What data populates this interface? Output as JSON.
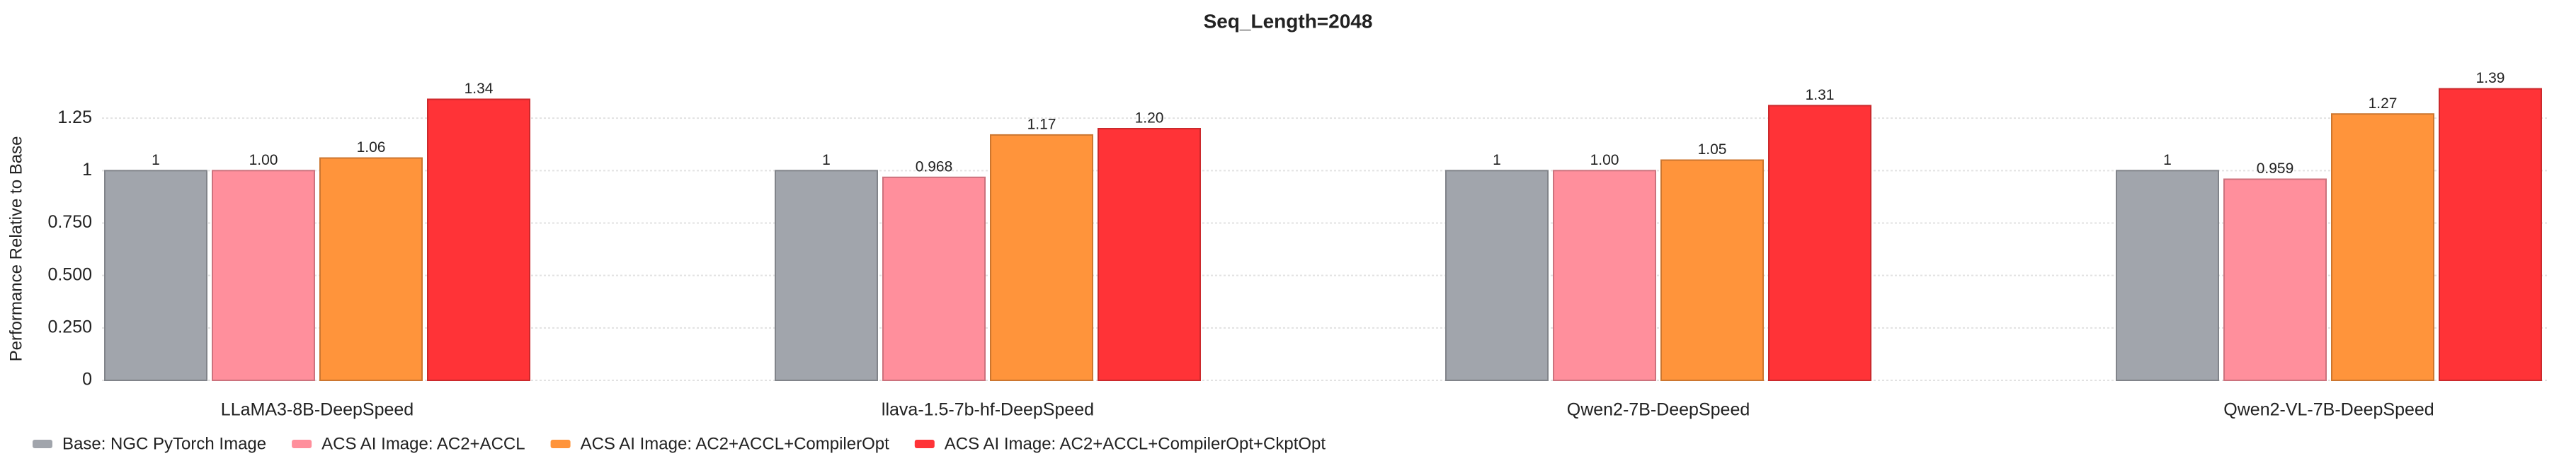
{
  "chart_data": {
    "type": "bar",
    "title": "Seq_Length=2048",
    "y_label": "Performance Relative to Base",
    "categories": [
      "LLaMA3-8B-DeepSpeed",
      "llava-1.5-7b-hf-DeepSpeed",
      "Qwen2-7B-DeepSpeed",
      "Qwen2-VL-7B-DeepSpeed"
    ],
    "series": [
      {
        "name": "Base: NGC PyTorch Image",
        "color": "#a1a5ac",
        "values": [
          1,
          1,
          1,
          1
        ]
      },
      {
        "name": "ACS AI Image: AC2+ACCL",
        "color": "#ff8f9c",
        "values": [
          1.0,
          0.968,
          1.0,
          0.959
        ],
        "value_labels": [
          "1.00",
          "0.968",
          "1.00",
          "0.959"
        ]
      },
      {
        "name": "ACS AI Image: AC2+ACCL+CompilerOpt",
        "color": "#ff943b",
        "values": [
          1.06,
          1.17,
          1.05,
          1.27
        ],
        "value_labels": [
          "1.06",
          "1.17",
          "1.05",
          "1.27"
        ]
      },
      {
        "name": "ACS AI Image: AC2+ACCL+CompilerOpt+CkptOpt",
        "color": "#ff3337",
        "values": [
          1.34,
          1.2,
          1.31,
          1.39
        ],
        "value_labels": [
          "1.34",
          "1.20",
          "1.31",
          "1.39"
        ]
      }
    ],
    "ylim": [
      0,
      1.5
    ],
    "yticks": [
      0,
      {
        "value": 0.25,
        "label": "0.250"
      },
      {
        "value": 0.5,
        "label": "0.500"
      },
      {
        "value": 0.75,
        "label": "0.750"
      },
      1,
      1.25
    ],
    "grid": true,
    "legend": "bottom-left"
  }
}
